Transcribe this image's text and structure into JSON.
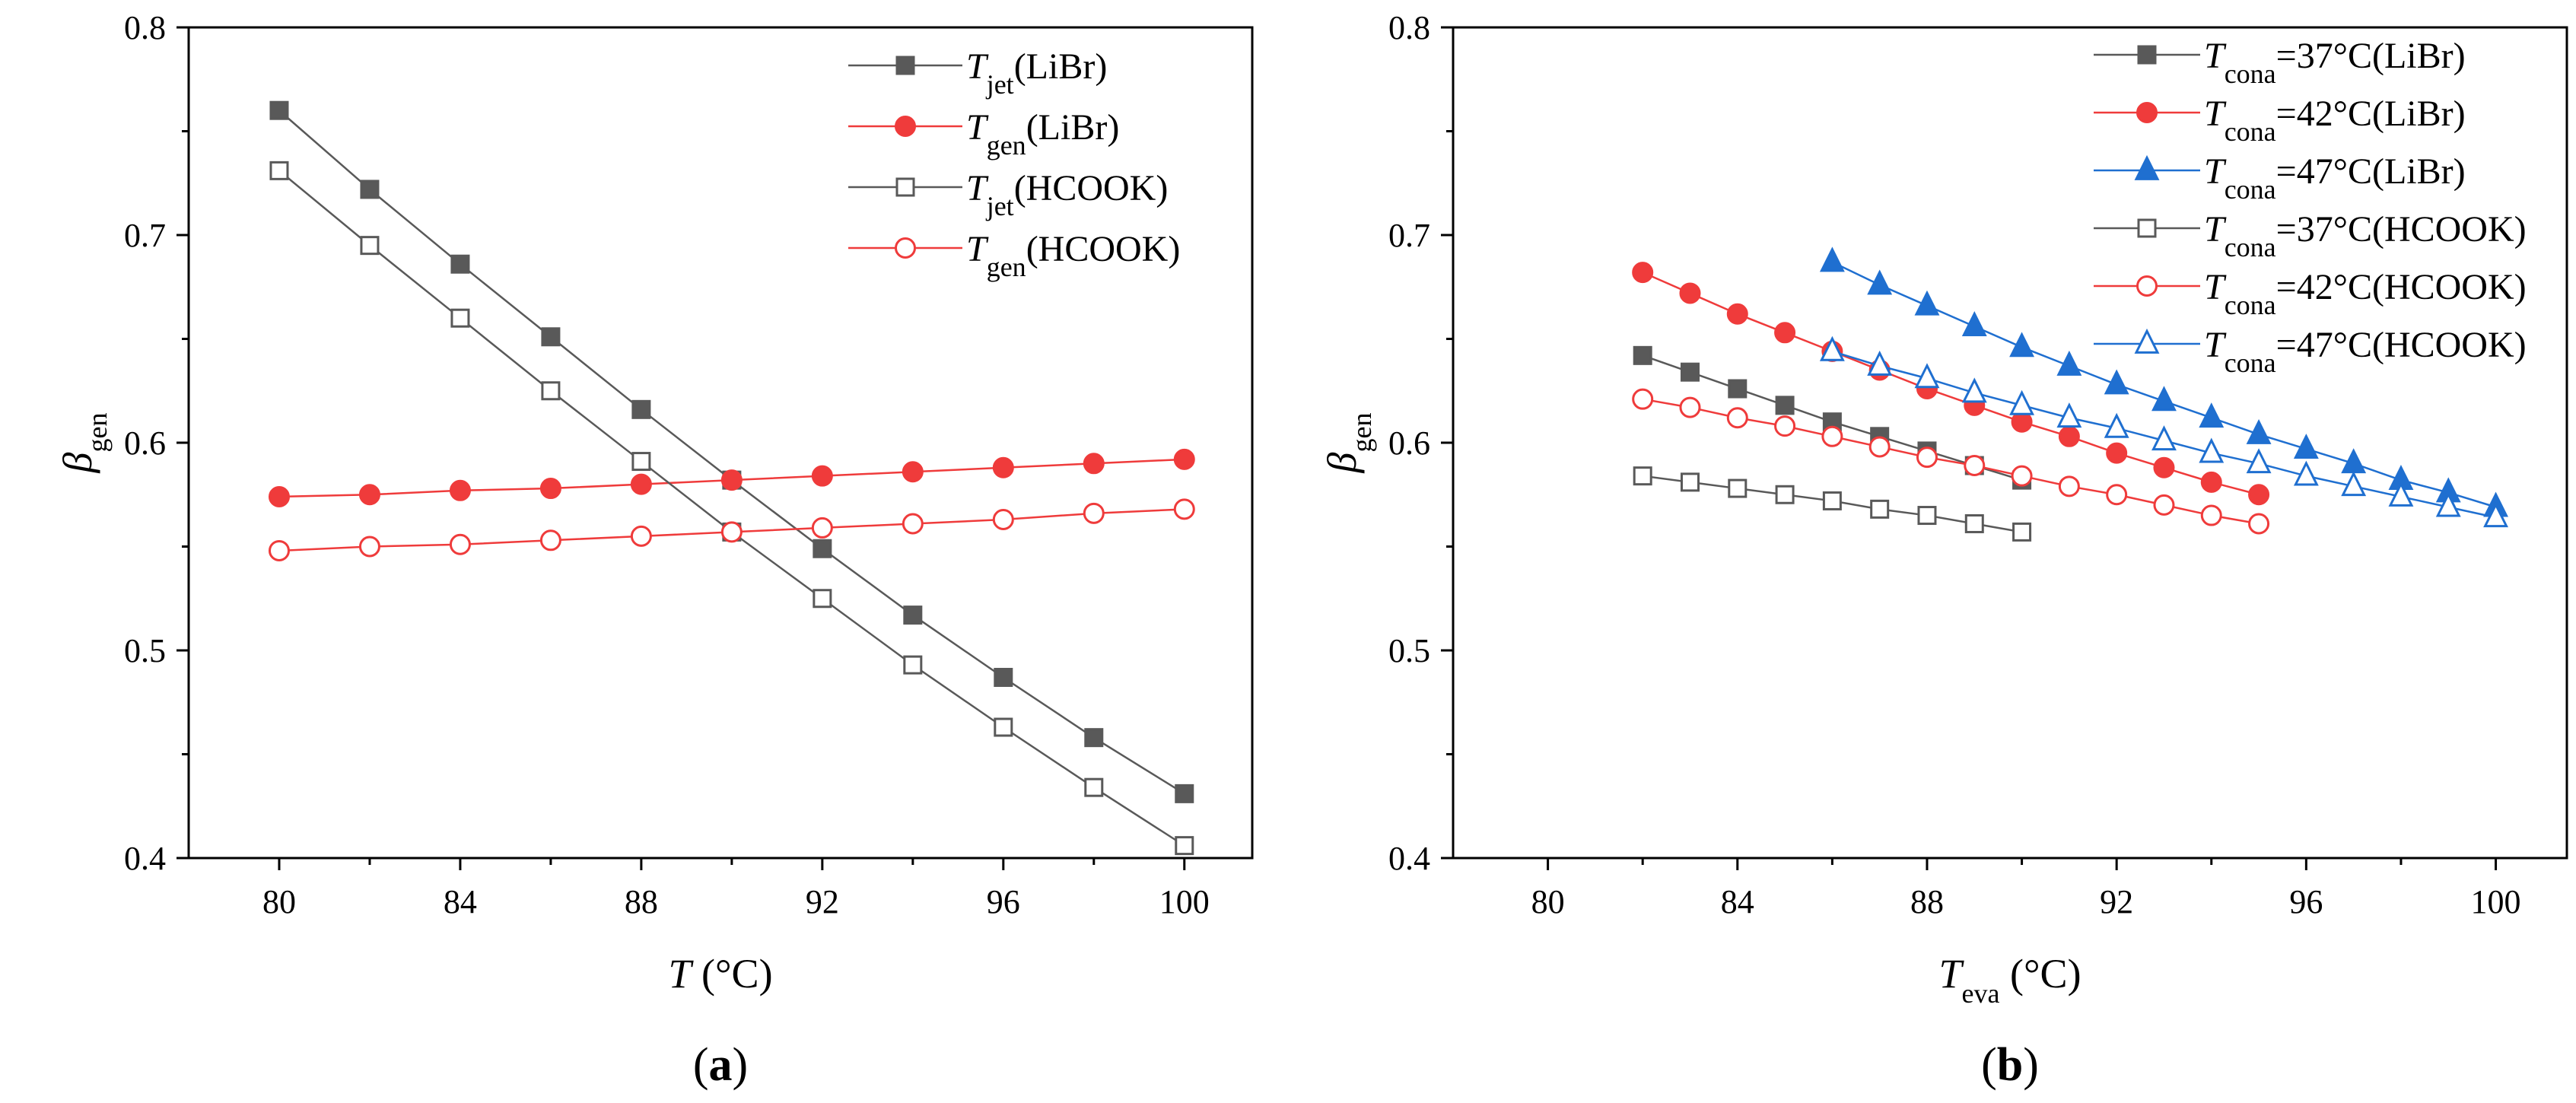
{
  "chart_data": [
    {
      "type": "line",
      "caption": "(a)",
      "xlabel": {
        "main": "T",
        "unit": " (°C)"
      },
      "ylabel": {
        "main": "β",
        "sub": "gen"
      },
      "xlim": [
        78,
        101.5
      ],
      "ylim": [
        0.4,
        0.8
      ],
      "x_ticks": [
        80,
        84,
        88,
        92,
        96,
        100
      ],
      "y_ticks": [
        0.4,
        0.5,
        0.6,
        0.7,
        0.8
      ],
      "y_tick_labels": [
        "0.4",
        "0.5",
        "0.6",
        "0.7",
        "0.8"
      ],
      "grid": false,
      "legend_position": "top-right",
      "series": [
        {
          "name_main": "T",
          "name_sub": "jet",
          "name_rest": "(LiBr)",
          "color": "#595959",
          "marker": "square",
          "filled": true,
          "x": [
            80,
            82,
            84,
            86,
            88,
            90,
            92,
            94,
            96,
            98,
            100
          ],
          "y": [
            0.76,
            0.722,
            0.686,
            0.651,
            0.616,
            0.582,
            0.549,
            0.517,
            0.487,
            0.458,
            0.431
          ]
        },
        {
          "name_main": "T",
          "name_sub": "gen",
          "name_rest": "(LiBr)",
          "color": "#ef3b3b",
          "marker": "circle",
          "filled": true,
          "x": [
            80,
            82,
            84,
            86,
            88,
            90,
            92,
            94,
            96,
            98,
            100
          ],
          "y": [
            0.574,
            0.575,
            0.577,
            0.578,
            0.58,
            0.582,
            0.584,
            0.586,
            0.588,
            0.59,
            0.592
          ]
        },
        {
          "name_main": "T",
          "name_sub": "jet",
          "name_rest": "(HCOOK)",
          "color": "#595959",
          "marker": "square",
          "filled": false,
          "x": [
            80,
            82,
            84,
            86,
            88,
            90,
            92,
            94,
            96,
            98,
            100
          ],
          "y": [
            0.731,
            0.695,
            0.66,
            0.625,
            0.591,
            0.557,
            0.525,
            0.493,
            0.463,
            0.434,
            0.406
          ]
        },
        {
          "name_main": "T",
          "name_sub": "gen",
          "name_rest": "(HCOOK)",
          "color": "#ef3b3b",
          "marker": "circle",
          "filled": false,
          "x": [
            80,
            82,
            84,
            86,
            88,
            90,
            92,
            94,
            96,
            98,
            100
          ],
          "y": [
            0.548,
            0.55,
            0.551,
            0.553,
            0.555,
            0.557,
            0.559,
            0.561,
            0.563,
            0.566,
            0.568
          ]
        }
      ]
    },
    {
      "type": "line",
      "caption": "(b)",
      "xlabel": {
        "main": "T",
        "sub": "eva",
        "unit": " (°C)"
      },
      "ylabel": {
        "main": "β",
        "sub": "gen"
      },
      "xlim": [
        78,
        101.5
      ],
      "ylim": [
        0.4,
        0.8
      ],
      "x_ticks": [
        80,
        84,
        88,
        92,
        96,
        100
      ],
      "y_ticks": [
        0.4,
        0.5,
        0.6,
        0.7,
        0.8
      ],
      "y_tick_labels": [
        "0.4",
        "0.5",
        "0.6",
        "0.7",
        "0.8"
      ],
      "grid": false,
      "legend_position": "top-right",
      "series": [
        {
          "name_main": "T",
          "name_sub": "cona",
          "name_rest": "=37°C(LiBr)",
          "color": "#595959",
          "marker": "square",
          "filled": true,
          "x": [
            82,
            83,
            84,
            85,
            86,
            87,
            88,
            89,
            90
          ],
          "y": [
            0.642,
            0.634,
            0.626,
            0.618,
            0.61,
            0.603,
            0.596,
            0.589,
            0.582
          ]
        },
        {
          "name_main": "T",
          "name_sub": "cona",
          "name_rest": "=42°C(LiBr)",
          "color": "#ef3b3b",
          "marker": "circle",
          "filled": true,
          "x": [
            82,
            83,
            84,
            85,
            86,
            87,
            88,
            89,
            90,
            91,
            92,
            93,
            94,
            95
          ],
          "y": [
            0.682,
            0.672,
            0.662,
            0.653,
            0.644,
            0.635,
            0.626,
            0.618,
            0.61,
            0.603,
            0.595,
            0.588,
            0.581,
            0.575
          ]
        },
        {
          "name_main": "T",
          "name_sub": "cona",
          "name_rest": "=47°C(LiBr)",
          "color": "#1f6fd0",
          "marker": "triangle",
          "filled": true,
          "x": [
            86,
            87,
            88,
            89,
            90,
            91,
            92,
            93,
            94,
            95,
            96,
            97,
            98,
            99,
            100
          ],
          "y": [
            0.687,
            0.676,
            0.666,
            0.656,
            0.646,
            0.637,
            0.628,
            0.62,
            0.612,
            0.604,
            0.597,
            0.59,
            0.582,
            0.576,
            0.569
          ]
        },
        {
          "name_main": "T",
          "name_sub": "cona",
          "name_rest": "=37°C(HCOOK)",
          "color": "#595959",
          "marker": "square",
          "filled": false,
          "x": [
            82,
            83,
            84,
            85,
            86,
            87,
            88,
            89,
            90
          ],
          "y": [
            0.584,
            0.581,
            0.578,
            0.575,
            0.572,
            0.568,
            0.565,
            0.561,
            0.557
          ]
        },
        {
          "name_main": "T",
          "name_sub": "cona",
          "name_rest": "=42°C(HCOOK)",
          "color": "#ef3b3b",
          "marker": "circle",
          "filled": false,
          "x": [
            82,
            83,
            84,
            85,
            86,
            87,
            88,
            89,
            90,
            91,
            92,
            93,
            94,
            95
          ],
          "y": [
            0.621,
            0.617,
            0.612,
            0.608,
            0.603,
            0.598,
            0.593,
            0.589,
            0.584,
            0.579,
            0.575,
            0.57,
            0.565,
            0.561
          ]
        },
        {
          "name_main": "T",
          "name_sub": "cona",
          "name_rest": "=47°C(HCOOK)",
          "color": "#1f6fd0",
          "marker": "triangle",
          "filled": false,
          "x": [
            86,
            87,
            88,
            89,
            90,
            91,
            92,
            93,
            94,
            95,
            96,
            97,
            98,
            99,
            100
          ],
          "y": [
            0.644,
            0.637,
            0.631,
            0.624,
            0.618,
            0.612,
            0.607,
            0.601,
            0.595,
            0.59,
            0.584,
            0.579,
            0.574,
            0.569,
            0.564
          ]
        }
      ]
    }
  ]
}
